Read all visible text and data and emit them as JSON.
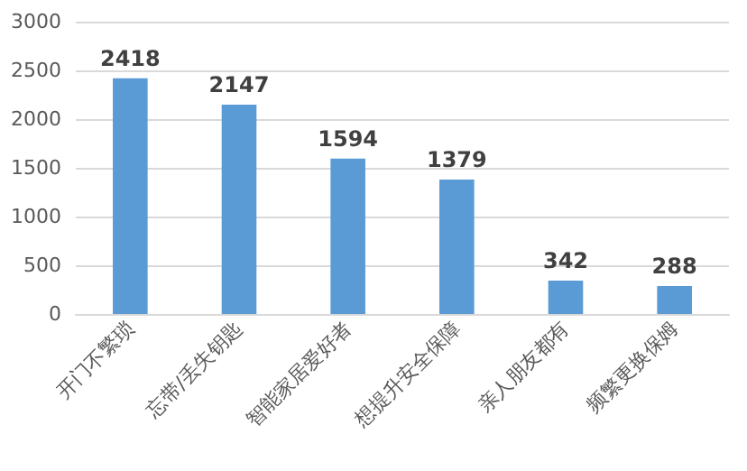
{
  "chart_data": {
    "type": "bar",
    "categories": [
      "开门不繁琐",
      "忘带/丢失钥匙",
      "智能家居爱好者",
      "想提升安全保障",
      "亲人朋友都有",
      "频繁更换保姆"
    ],
    "values": [
      2418,
      2147,
      1594,
      1379,
      342,
      288
    ],
    "color": "#5b9bd5",
    "ylim": [
      0,
      3000
    ],
    "yticks": [
      0,
      500,
      1000,
      1500,
      2000,
      2500,
      3000
    ],
    "grid": "y",
    "data_labels": true
  }
}
